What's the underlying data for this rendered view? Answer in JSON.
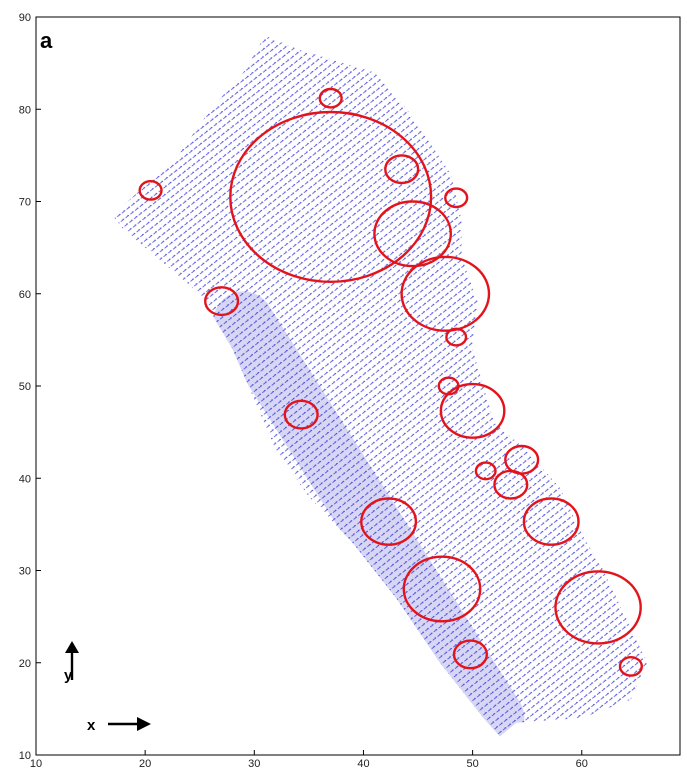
{
  "chart_data": {
    "type": "scatter",
    "title": "",
    "panel_label": "a",
    "xlabel": "",
    "ylabel": "",
    "xlim": [
      10,
      69
    ],
    "ylim": [
      10,
      90
    ],
    "x_ticks": [
      10,
      20,
      30,
      40,
      50,
      60
    ],
    "y_ticks": [
      10,
      20,
      30,
      40,
      50,
      60,
      70,
      80,
      90
    ],
    "grid": false,
    "colors": {
      "vectors": "#2b2bd9",
      "circles": "#e3131b",
      "axis": "#000000"
    },
    "vector_field_outline": [
      [
        17,
        68.5
      ],
      [
        23,
        75
      ],
      [
        26,
        80
      ],
      [
        29,
        84
      ],
      [
        31,
        88
      ],
      [
        34,
        86.5
      ],
      [
        41,
        84
      ],
      [
        44,
        80
      ],
      [
        48,
        73
      ],
      [
        49,
        68
      ],
      [
        49,
        64
      ],
      [
        50.5,
        59
      ],
      [
        50,
        54
      ],
      [
        52,
        46
      ],
      [
        55,
        43
      ],
      [
        58,
        39
      ],
      [
        60,
        34
      ],
      [
        62,
        30
      ],
      [
        64,
        25
      ],
      [
        66,
        20
      ],
      [
        64.5,
        16
      ],
      [
        60,
        14
      ],
      [
        54,
        13.5
      ],
      [
        52.5,
        12
      ],
      [
        51,
        14
      ],
      [
        47,
        20
      ],
      [
        43,
        27
      ],
      [
        39,
        33
      ],
      [
        35,
        38
      ],
      [
        32,
        43
      ],
      [
        28,
        54
      ],
      [
        25,
        60
      ],
      [
        22,
        63
      ],
      [
        18,
        67
      ]
    ],
    "direction_indicators": [
      {
        "label": "y",
        "arrow": "up"
      },
      {
        "label": "x",
        "arrow": "right"
      }
    ],
    "series": [
      {
        "name": "",
        "marker": "circle",
        "points": [
          {
            "x": 37,
            "y": 81.2,
            "r": 1.0
          },
          {
            "x": 20.5,
            "y": 71.2,
            "r": 1.0
          },
          {
            "x": 37,
            "y": 70.5,
            "r": 9.2
          },
          {
            "x": 43.5,
            "y": 73.5,
            "r": 1.5
          },
          {
            "x": 48.5,
            "y": 70.4,
            "r": 1.0
          },
          {
            "x": 44.5,
            "y": 66.5,
            "r": 3.5
          },
          {
            "x": 47.5,
            "y": 60,
            "r": 4.0
          },
          {
            "x": 27,
            "y": 59.2,
            "r": 1.5
          },
          {
            "x": 48.5,
            "y": 55.3,
            "r": 0.9
          },
          {
            "x": 47.8,
            "y": 50,
            "r": 0.9
          },
          {
            "x": 50,
            "y": 47.3,
            "r": 2.9
          },
          {
            "x": 34.3,
            "y": 46.9,
            "r": 1.5
          },
          {
            "x": 54.5,
            "y": 42,
            "r": 1.5
          },
          {
            "x": 51.2,
            "y": 40.8,
            "r": 0.9
          },
          {
            "x": 53.5,
            "y": 39.3,
            "r": 1.5
          },
          {
            "x": 57.2,
            "y": 35.3,
            "r": 2.5
          },
          {
            "x": 42.3,
            "y": 35.3,
            "r": 2.5
          },
          {
            "x": 47.2,
            "y": 28,
            "r": 3.5
          },
          {
            "x": 61.5,
            "y": 26,
            "r": 3.9
          },
          {
            "x": 49.8,
            "y": 20.9,
            "r": 1.5
          },
          {
            "x": 64.5,
            "y": 19.6,
            "r": 1.0
          }
        ]
      }
    ]
  }
}
